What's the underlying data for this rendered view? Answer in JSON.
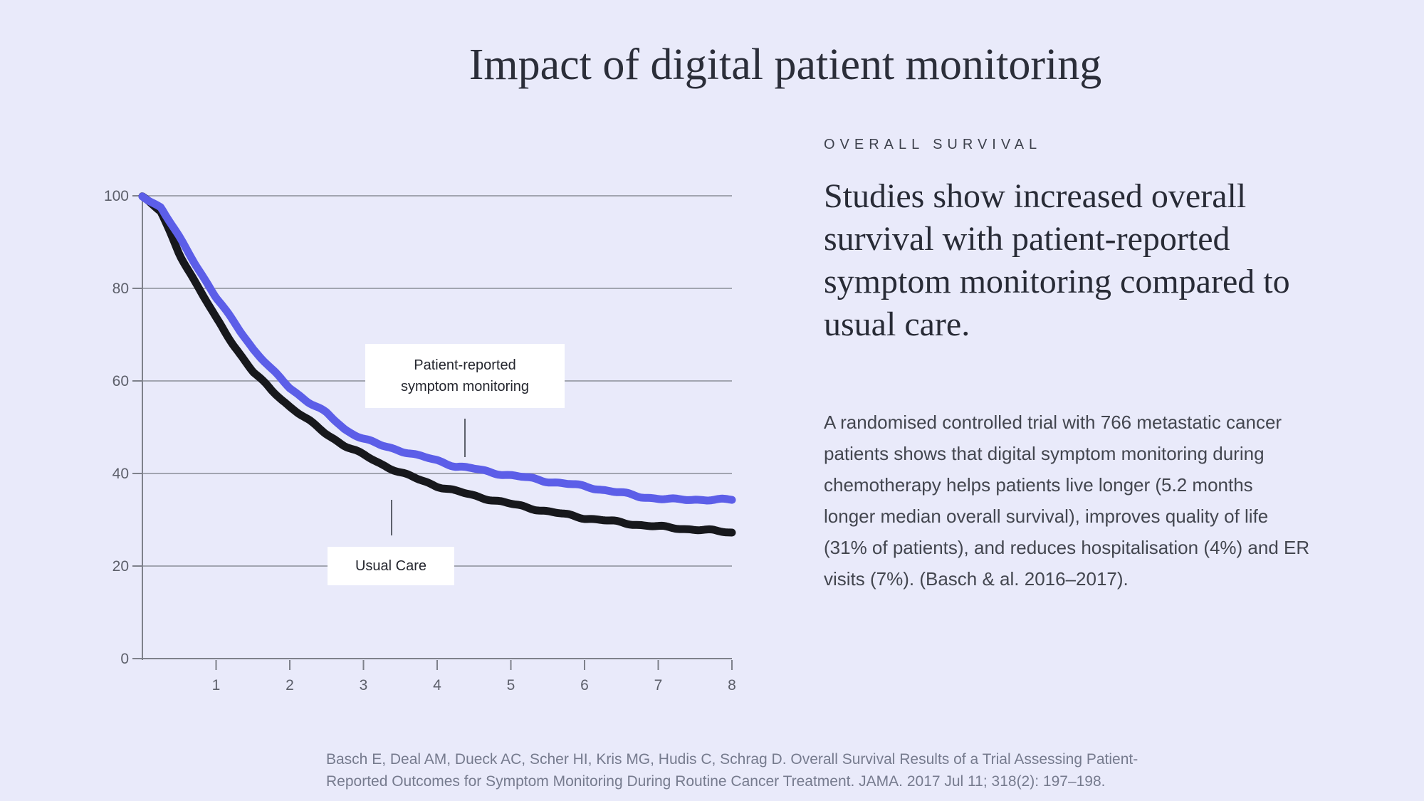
{
  "title": "Impact of digital patient monitoring",
  "colors": {
    "background": "#e9eafa",
    "monitoring_line": "#5c5ee8",
    "usual_care_line": "#17181c",
    "grid": "#8b8e98",
    "axis": "#7e818b",
    "tick_label": "#5c5f6a",
    "callout": "#5d616c",
    "annotation_bg": "#ffffff"
  },
  "chart_data": {
    "type": "line",
    "title": "",
    "xlabel": "",
    "ylabel": "",
    "xlim": [
      0,
      8
    ],
    "ylim": [
      0,
      100
    ],
    "x_ticks": [
      1,
      2,
      3,
      4,
      5,
      6,
      7,
      8
    ],
    "y_ticks": [
      0,
      20,
      40,
      60,
      80,
      100
    ],
    "grid": "horizontal",
    "legend_position": "inline-callout-labels",
    "x": [
      0,
      0.25,
      0.5,
      0.75,
      1,
      1.25,
      1.5,
      1.75,
      2,
      2.25,
      2.5,
      2.75,
      3,
      3.25,
      3.5,
      3.75,
      4,
      4.25,
      4.5,
      4.75,
      5,
      5.25,
      5.5,
      5.75,
      6,
      6.25,
      6.5,
      6.75,
      7,
      7.25,
      7.5,
      7.75,
      8
    ],
    "series": [
      {
        "name": "Patient-reported symptom monitoring",
        "color": "#5c5ee8",
        "values": [
          100,
          97.5,
          91,
          84.5,
          78,
          72.5,
          67,
          62.5,
          58.5,
          55.5,
          53,
          49.5,
          47.5,
          46,
          45,
          43.8,
          42.8,
          41.6,
          41,
          40.2,
          39.6,
          39,
          38.3,
          37.8,
          37.2,
          36.5,
          35.8,
          35,
          34.6,
          34.3,
          34.4,
          34.3,
          34.3
        ]
      },
      {
        "name": "Usual Care",
        "color": "#17181c",
        "values": [
          100,
          96.5,
          87.5,
          80.5,
          73.5,
          67.5,
          62,
          58,
          54.5,
          51.5,
          48.5,
          46,
          44,
          42,
          40.2,
          38.7,
          37.3,
          36.2,
          35.2,
          34.3,
          33.4,
          32.6,
          31.8,
          31.1,
          30.4,
          29.9,
          29.4,
          28.9,
          28.5,
          28.2,
          27.9,
          27.6,
          27.3
        ]
      }
    ]
  },
  "chart_labels": {
    "monitoring_line1": "Patient-reported",
    "monitoring_line2": "symptom monitoring",
    "usual_care": "Usual Care"
  },
  "panel": {
    "eyebrow": "OVERALL SURVIVAL",
    "heading_lines": [
      "Studies show increased overall",
      "survival with patient-reported",
      "symptom monitoring compared to",
      "usual care."
    ],
    "body_lines": [
      "A randomised controlled trial with 766 metastatic cancer",
      "patients shows that digital symptom monitoring during",
      "chemotherapy helps patients live longer (5.2 months",
      "longer median overall survival), improves quality of life",
      "(31% of patients), and reduces hospitalisation (4%) and ER",
      "visits (7%). (Basch & al. 2016–2017)."
    ]
  },
  "citation": {
    "line1": "Basch E, Deal AM, Dueck AC, Scher HI, Kris MG, Hudis C, Schrag D. Overall Survival Results of a Trial Assessing Patient-",
    "line2": "Reported Outcomes for Symptom Monitoring During Routine Cancer Treatment. JAMA. 2017 Jul 11; 318(2): 197–198."
  }
}
